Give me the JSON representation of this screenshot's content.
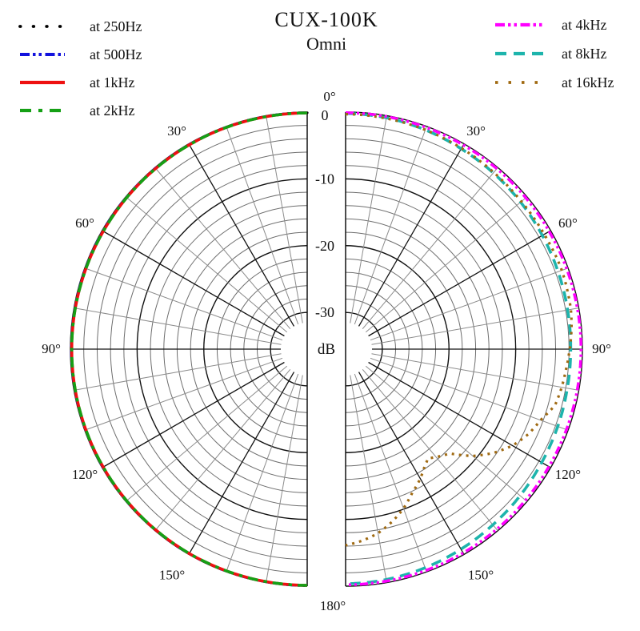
{
  "title": "CUX-100K",
  "subtitle": "Omni",
  "chart_data": {
    "type": "polar",
    "title": "CUX-100K",
    "subtitle": "Omni",
    "layout": "two-half-circles, 0° at top, 180° at bottom, grid on",
    "radial_unit_label": "dB",
    "radial_ticks": [
      {
        "db": 0,
        "label": "0"
      },
      {
        "db": -10,
        "label": "-10"
      },
      {
        "db": -20,
        "label": "-20"
      },
      {
        "db": -30,
        "label": "-30"
      }
    ],
    "radial_min_db": -35.5,
    "ring_step_db": 2,
    "spoke_step_deg": 10,
    "major_spoke_step_deg": 30,
    "angle_ticks": [
      {
        "deg": 0,
        "label": "0°"
      },
      {
        "deg": 30,
        "label": "30°"
      },
      {
        "deg": 60,
        "label": "60°"
      },
      {
        "deg": 90,
        "label": "90°"
      },
      {
        "deg": 120,
        "label": "120°"
      },
      {
        "deg": 150,
        "label": "150°"
      },
      {
        "deg": 180,
        "label": "180°"
      }
    ],
    "points_format": "[angle_deg, dB]",
    "series": [
      {
        "name": "at 250Hz",
        "side": "left",
        "legend": "left",
        "color": "#000000",
        "width": 3.2,
        "dash": "0.6 10",
        "legend_dash": "0.6 16",
        "cap": "round",
        "points": [
          [
            0,
            -0.1
          ],
          [
            45,
            -0.13
          ],
          [
            90,
            -0.16
          ],
          [
            135,
            -0.13
          ],
          [
            180,
            -0.1
          ]
        ]
      },
      {
        "name": "at 500Hz",
        "side": "left",
        "legend": "left",
        "color": "#1212dd",
        "width": 3.4,
        "dash": "11 4 3 4 3 4",
        "legend_dash": "12 4 3.5 4 3.5 4.5",
        "cap": "butt",
        "points": [
          [
            0,
            -0.1
          ],
          [
            45,
            -0.13
          ],
          [
            90,
            -0.16
          ],
          [
            135,
            -0.13
          ],
          [
            180,
            -0.1
          ]
        ]
      },
      {
        "name": "at 1kHz",
        "side": "left",
        "legend": "left",
        "color": "#ee1111",
        "width": 3.6,
        "dash": "",
        "legend_dash": "",
        "cap": "butt",
        "points": [
          [
            0,
            -0.12
          ],
          [
            30,
            -0.16
          ],
          [
            60,
            -0.2
          ],
          [
            90,
            -0.2
          ],
          [
            120,
            -0.18
          ],
          [
            150,
            -0.15
          ],
          [
            180,
            -0.12
          ]
        ]
      },
      {
        "name": "at 2kHz",
        "side": "left",
        "legend": "left",
        "color": "#15a015",
        "width": 3.6,
        "dash": "13 7 4.5 7",
        "legend_dash": "14 9 5 9",
        "cap": "butt",
        "points": [
          [
            0,
            -0.12
          ],
          [
            30,
            -0.16
          ],
          [
            60,
            -0.2
          ],
          [
            90,
            -0.2
          ],
          [
            120,
            -0.18
          ],
          [
            150,
            -0.15
          ],
          [
            180,
            -0.12
          ]
        ]
      },
      {
        "name": "at 8kHz",
        "side": "right",
        "legend": "right",
        "color": "#1db4ac",
        "width": 3.6,
        "dash": "13 8",
        "legend_dash": "14 9",
        "cap": "butt",
        "points": [
          [
            0,
            -0.2
          ],
          [
            10,
            -0.3
          ],
          [
            20,
            -0.55
          ],
          [
            30,
            -0.85
          ],
          [
            40,
            -1.05
          ],
          [
            50,
            -1.25
          ],
          [
            60,
            -1.45
          ],
          [
            70,
            -1.6
          ],
          [
            80,
            -1.7
          ],
          [
            90,
            -1.75
          ],
          [
            100,
            -1.75
          ],
          [
            110,
            -1.65
          ],
          [
            120,
            -1.55
          ],
          [
            130,
            -1.35
          ],
          [
            140,
            -1.15
          ],
          [
            150,
            -0.9
          ],
          [
            160,
            -0.65
          ],
          [
            170,
            -0.45
          ],
          [
            180,
            -0.35
          ]
        ]
      },
      {
        "name": "at 4kHz",
        "side": "right",
        "legend": "right",
        "color": "#ff00ff",
        "width": 3.6,
        "dash": "10 4 3 4 3 4",
        "legend_dash": "12 4 3.5 4 3.5 4.5",
        "cap": "butt",
        "points": [
          [
            0,
            -0.1
          ],
          [
            30,
            -0.2
          ],
          [
            60,
            -0.25
          ],
          [
            90,
            -0.2
          ],
          [
            120,
            -0.3
          ],
          [
            150,
            -0.25
          ],
          [
            180,
            -0.2
          ]
        ]
      },
      {
        "name": "at 16kHz",
        "side": "right",
        "legend": "right",
        "color": "#a06a12",
        "width": 3.2,
        "dash": "3 6",
        "legend_dash": "3.5 13",
        "cap": "butt",
        "points": [
          [
            0,
            -0.3
          ],
          [
            10,
            -0.4
          ],
          [
            20,
            -0.55
          ],
          [
            30,
            -0.75
          ],
          [
            40,
            -0.95
          ],
          [
            50,
            -1.1
          ],
          [
            60,
            -1.1
          ],
          [
            70,
            -1.0
          ],
          [
            80,
            -1.2
          ],
          [
            85,
            -1.5
          ],
          [
            90,
            -1.9
          ],
          [
            95,
            -2.3
          ],
          [
            100,
            -2.6
          ],
          [
            105,
            -3.0
          ],
          [
            110,
            -4.4
          ],
          [
            115,
            -5.3
          ],
          [
            120,
            -6.6
          ],
          [
            125,
            -8.4
          ],
          [
            130,
            -10.6
          ],
          [
            135,
            -13.4
          ],
          [
            140,
            -14.4
          ],
          [
            143,
            -15.0
          ],
          [
            146,
            -14.3
          ],
          [
            150,
            -13.1
          ],
          [
            155,
            -11.8
          ],
          [
            160,
            -10.1
          ],
          [
            165,
            -8.7
          ],
          [
            170,
            -7.5
          ],
          [
            175,
            -6.7
          ],
          [
            180,
            -6.1
          ]
        ]
      }
    ],
    "legend_order_left": [
      "at 250Hz",
      "at 500Hz",
      "at 1kHz",
      "at 2kHz"
    ],
    "legend_order_right": [
      "at 4kHz",
      "at 8kHz",
      "at 16kHz"
    ]
  }
}
